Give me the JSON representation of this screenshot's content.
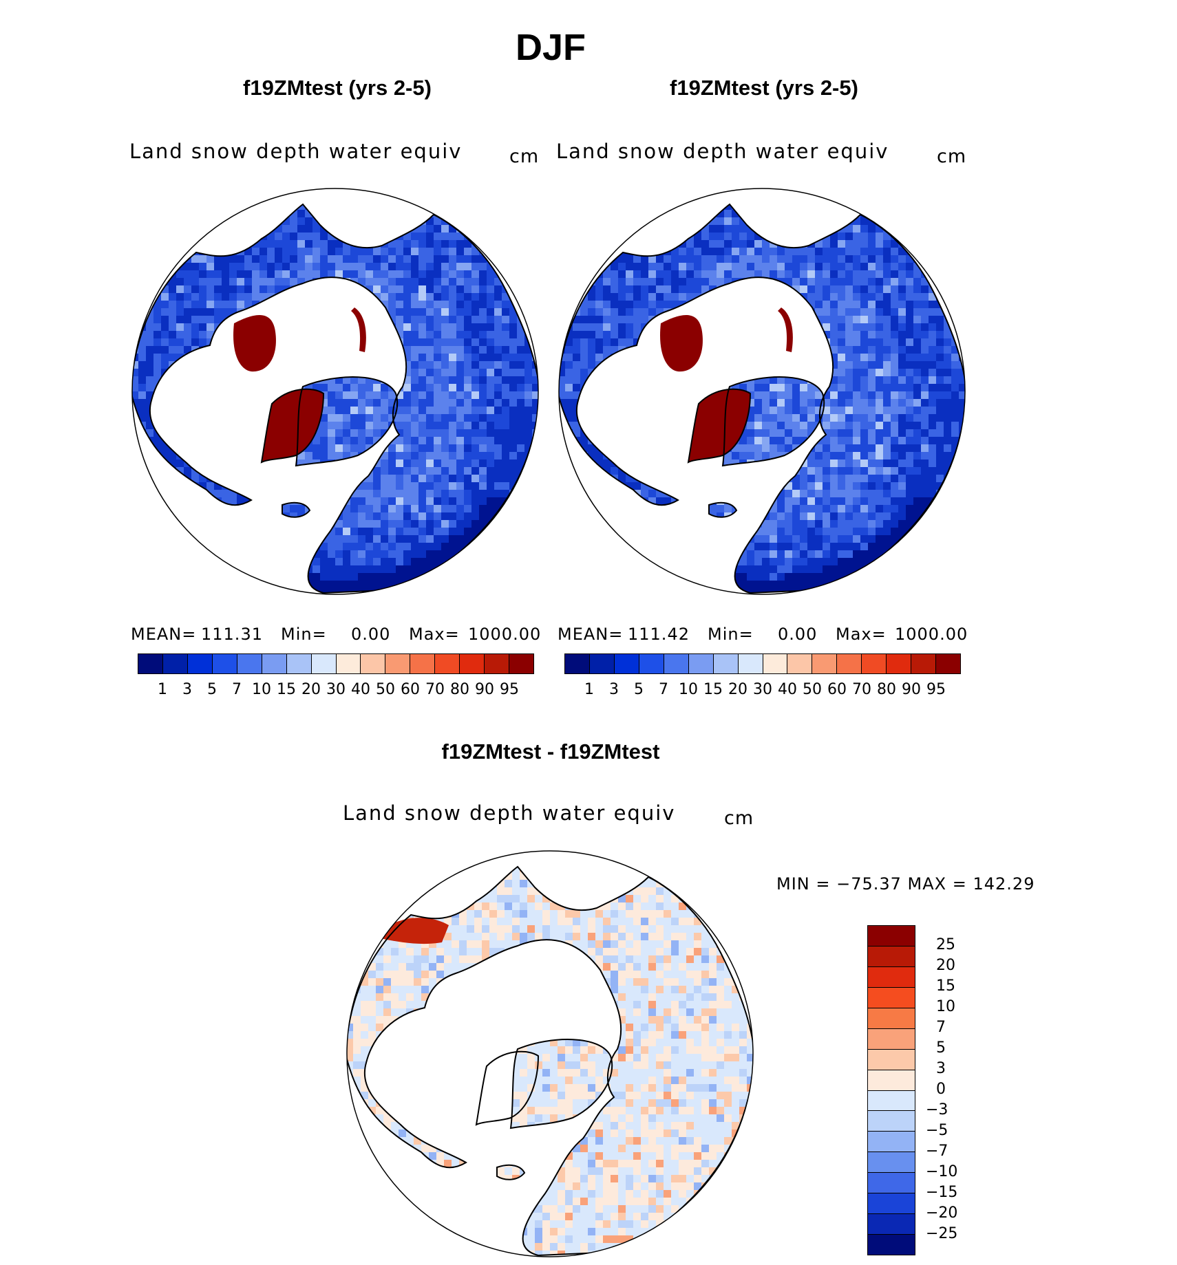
{
  "title": "DJF",
  "panels": [
    {
      "case": "f19ZMtest (yrs 2-5)",
      "variable": "Land snow depth water equiv",
      "units": "cm",
      "stats": {
        "mean_label": "MEAN=",
        "mean": "111.31",
        "min_label": "Min=",
        "min": "0.00",
        "max_label": "Max=",
        "max": "1000.00"
      }
    },
    {
      "case": "f19ZMtest (yrs 2-5)",
      "variable": "Land snow depth water equiv",
      "units": "cm",
      "stats": {
        "mean_label": "MEAN=",
        "mean": "111.42",
        "min_label": "Min=",
        "min": "0.00",
        "max_label": "Max=",
        "max": "1000.00"
      }
    }
  ],
  "diff_panel": {
    "case": "f19ZMtest - f19ZMtest",
    "variable": "Land snow depth water equiv",
    "units": "cm",
    "minmax": "MIN = −75.37  MAX =  142.29"
  },
  "chart_data": [
    {
      "type": "heatmap",
      "projection": "north-polar-stereographic",
      "title": "f19ZMtest (yrs 2-5)",
      "subtitle": "Land snow depth water equiv",
      "units": "cm",
      "mean": 111.31,
      "min": 0.0,
      "max": 1000.0,
      "contour_levels": [
        1,
        3,
        5,
        7,
        10,
        15,
        20,
        30,
        40,
        50,
        60,
        70,
        80,
        90,
        95
      ],
      "colors": [
        "#000c7a",
        "#0020a8",
        "#0030d8",
        "#1e50e8",
        "#4a76ee",
        "#7a9cf2",
        "#a9c3f7",
        "#d9e8fc",
        "#fdebdb",
        "#fcc6a8",
        "#f99a72",
        "#f57248",
        "#f04b24",
        "#e02b0e",
        "#b81a06",
        "#8b0000"
      ]
    },
    {
      "type": "heatmap",
      "projection": "north-polar-stereographic",
      "title": "f19ZMtest (yrs 2-5)",
      "subtitle": "Land snow depth water equiv",
      "units": "cm",
      "mean": 111.42,
      "min": 0.0,
      "max": 1000.0,
      "contour_levels": [
        1,
        3,
        5,
        7,
        10,
        15,
        20,
        30,
        40,
        50,
        60,
        70,
        80,
        90,
        95
      ],
      "colors": [
        "#000c7a",
        "#0020a8",
        "#0030d8",
        "#1e50e8",
        "#4a76ee",
        "#7a9cf2",
        "#a9c3f7",
        "#d9e8fc",
        "#fdebdb",
        "#fcc6a8",
        "#f99a72",
        "#f57248",
        "#f04b24",
        "#e02b0e",
        "#b81a06",
        "#8b0000"
      ]
    },
    {
      "type": "heatmap",
      "projection": "north-polar-stereographic",
      "title": "f19ZMtest - f19ZMtest",
      "subtitle": "Land snow depth water equiv",
      "units": "cm",
      "min": -75.37,
      "max": 142.29,
      "contour_levels": [
        "25",
        "20",
        "15",
        "10",
        "7",
        "5",
        "3",
        "0",
        "−3",
        "−5",
        "−7",
        "−10",
        "−15",
        "−20",
        "−25"
      ],
      "colors": [
        "#8b0000",
        "#b81a06",
        "#e02b0e",
        "#f54d1f",
        "#f77a45",
        "#f9a27a",
        "#fcc9aa",
        "#fdeadc",
        "#d9e8fc",
        "#bcd3f9",
        "#93b3f5",
        "#6890ef",
        "#3f68e8",
        "#1a44d8",
        "#0a28b4",
        "#000c7a"
      ]
    }
  ]
}
